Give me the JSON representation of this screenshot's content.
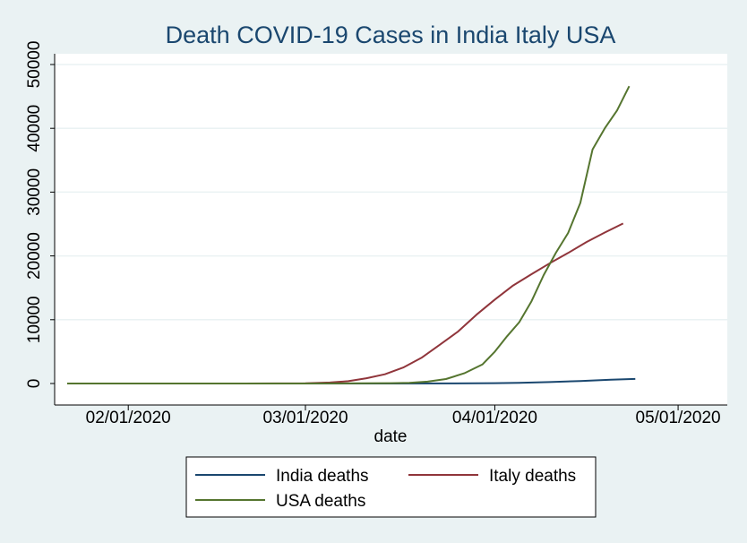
{
  "chart_data": {
    "type": "line",
    "title": "Death COVID-19 Cases in India Italy USA",
    "xlabel": "date",
    "ylabel": "",
    "x_ticks": [
      "02/01/2020",
      "03/01/2020",
      "04/01/2020",
      "05/01/2020"
    ],
    "y_ticks": [
      "0",
      "10000",
      "20000",
      "30000",
      "40000",
      "50000"
    ],
    "xlim": [
      "2020-01-22",
      "2020-05-07"
    ],
    "ylim": [
      0,
      50000
    ],
    "grid": "horizontal",
    "legend_position": "bottom",
    "series": [
      {
        "name": "India deaths",
        "color": "#1a476f",
        "points": [
          [
            "2020-01-22",
            0
          ],
          [
            "2020-03-01",
            0
          ],
          [
            "2020-03-15",
            2
          ],
          [
            "2020-03-25",
            11
          ],
          [
            "2020-04-01",
            50
          ],
          [
            "2020-04-05",
            100
          ],
          [
            "2020-04-10",
            230
          ],
          [
            "2020-04-15",
            400
          ],
          [
            "2020-04-20",
            590
          ],
          [
            "2020-04-24",
            720
          ]
        ]
      },
      {
        "name": "Italy deaths",
        "color": "#90353b",
        "points": [
          [
            "2020-01-22",
            0
          ],
          [
            "2020-02-20",
            0
          ],
          [
            "2020-02-25",
            10
          ],
          [
            "2020-03-01",
            30
          ],
          [
            "2020-03-05",
            150
          ],
          [
            "2020-03-08",
            370
          ],
          [
            "2020-03-11",
            830
          ],
          [
            "2020-03-14",
            1440
          ],
          [
            "2020-03-17",
            2500
          ],
          [
            "2020-03-20",
            4030
          ],
          [
            "2020-03-23",
            6080
          ],
          [
            "2020-03-26",
            8160
          ],
          [
            "2020-03-29",
            10780
          ],
          [
            "2020-04-01",
            13160
          ],
          [
            "2020-04-04",
            15360
          ],
          [
            "2020-04-07",
            17130
          ],
          [
            "2020-04-10",
            18850
          ],
          [
            "2020-04-13",
            20470
          ],
          [
            "2020-04-16",
            22170
          ],
          [
            "2020-04-19",
            23660
          ],
          [
            "2020-04-22",
            25085
          ]
        ]
      },
      {
        "name": "USA deaths",
        "color": "#55752f",
        "points": [
          [
            "2020-01-22",
            0
          ],
          [
            "2020-02-29",
            1
          ],
          [
            "2020-03-05",
            11
          ],
          [
            "2020-03-10",
            28
          ],
          [
            "2020-03-15",
            60
          ],
          [
            "2020-03-18",
            110
          ],
          [
            "2020-03-21",
            300
          ],
          [
            "2020-03-24",
            700
          ],
          [
            "2020-03-27",
            1600
          ],
          [
            "2020-03-30",
            3000
          ],
          [
            "2020-04-01",
            5000
          ],
          [
            "2020-04-03",
            7400
          ],
          [
            "2020-04-05",
            9600
          ],
          [
            "2020-04-07",
            12900
          ],
          [
            "2020-04-09",
            17000
          ],
          [
            "2020-04-11",
            20500
          ],
          [
            "2020-04-13",
            23600
          ],
          [
            "2020-04-15",
            28300
          ],
          [
            "2020-04-17",
            36700
          ],
          [
            "2020-04-19",
            40000
          ],
          [
            "2020-04-21",
            42800
          ],
          [
            "2020-04-23",
            46600
          ]
        ]
      }
    ]
  }
}
